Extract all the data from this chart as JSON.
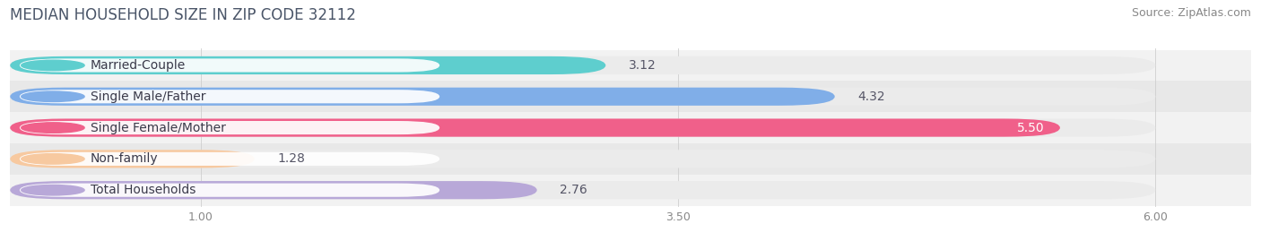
{
  "title": "MEDIAN HOUSEHOLD SIZE IN ZIP CODE 32112",
  "source": "Source: ZipAtlas.com",
  "categories": [
    "Married-Couple",
    "Single Male/Father",
    "Single Female/Mother",
    "Non-family",
    "Total Households"
  ],
  "values": [
    3.12,
    4.32,
    5.5,
    1.28,
    2.76
  ],
  "bar_colors": [
    "#5ecece",
    "#80aee8",
    "#f0608a",
    "#f7c9a0",
    "#b8a8d8"
  ],
  "bar_bg_color": "#ebebeb",
  "row_bg_even": "#f5f5f5",
  "row_bg_odd": "#ececec",
  "xlim": [
    0,
    6.5
  ],
  "xmin": 0,
  "xmax": 6.0,
  "xticks": [
    1.0,
    3.5,
    6.0
  ],
  "xtick_labels": [
    "1.00",
    "3.50",
    "6.00"
  ],
  "title_fontsize": 12,
  "source_fontsize": 9,
  "label_fontsize": 10,
  "value_fontsize": 10,
  "bar_height": 0.58,
  "background_color": "#ffffff",
  "value_inside_threshold": 4.5,
  "label_pill_color": "#ffffff",
  "title_color": "#4a5568",
  "source_color": "#888888"
}
